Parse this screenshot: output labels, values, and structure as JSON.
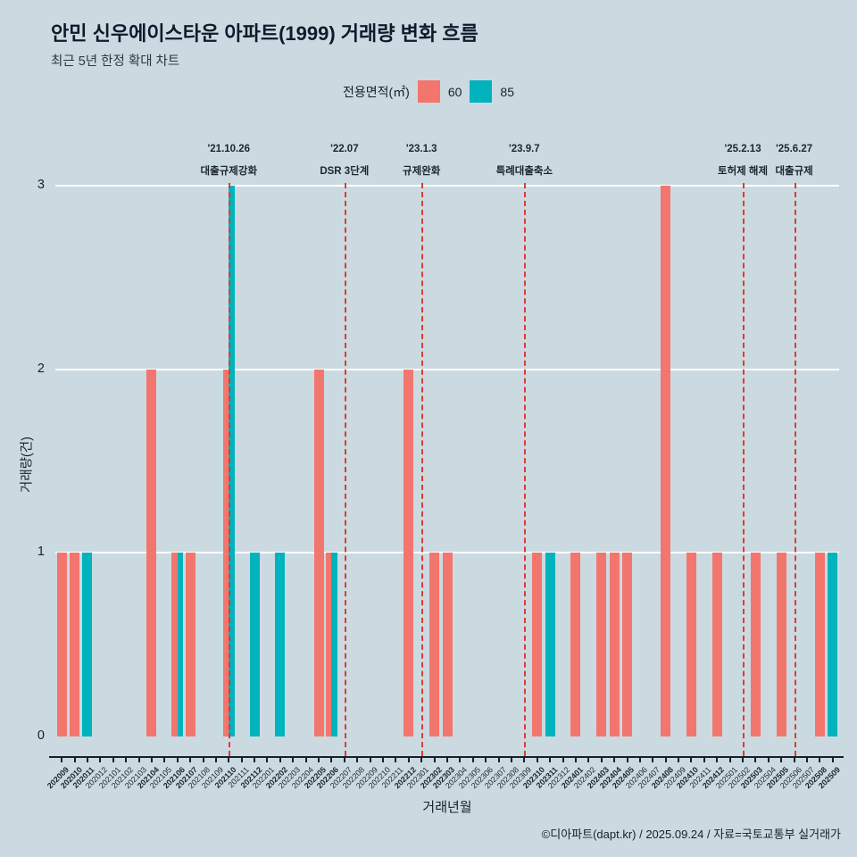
{
  "header": {
    "title": "안민 신우에이스타운 아파트(1999) 거래량 변화 흐름",
    "subtitle": "최근 5년 한정 확대 차트"
  },
  "legend": {
    "label": "전용면적(㎡)",
    "items": [
      {
        "name": "60",
        "color": "#f3766e"
      },
      {
        "name": "85",
        "color": "#00b3bd"
      }
    ]
  },
  "chart_data": {
    "type": "bar",
    "title": "안민 신우에이스타운 아파트(1999) 거래량 변화 흐름",
    "xlabel": "거래년월",
    "ylabel": "거래량(건)",
    "ylim": [
      0,
      3
    ],
    "yticks": [
      0,
      1,
      2,
      3
    ],
    "grid": "horizontal-white",
    "legend_position": "top-center",
    "categories": [
      "202009",
      "202010",
      "202011",
      "202012",
      "202101",
      "202102",
      "202103",
      "202104",
      "202105",
      "202106",
      "202107",
      "202108",
      "202109",
      "202110",
      "202111",
      "202112",
      "202201",
      "202202",
      "202203",
      "202204",
      "202205",
      "202206",
      "202207",
      "202208",
      "202209",
      "202210",
      "202211",
      "202212",
      "202301",
      "202302",
      "202303",
      "202304",
      "202305",
      "202306",
      "202307",
      "202308",
      "202309",
      "202310",
      "202311",
      "202312",
      "202401",
      "202402",
      "202403",
      "202404",
      "202405",
      "202406",
      "202407",
      "202408",
      "202409",
      "202410",
      "202411",
      "202412",
      "202501",
      "202502",
      "202503",
      "202504",
      "202505",
      "202506",
      "202507",
      "202508",
      "202509"
    ],
    "series": [
      {
        "name": "60",
        "color": "#f3766e",
        "values": [
          1,
          1,
          0,
          0,
          0,
          0,
          0,
          2,
          0,
          1,
          1,
          0,
          0,
          2,
          0,
          0,
          0,
          0,
          0,
          0,
          2,
          1,
          0,
          0,
          0,
          0,
          0,
          2,
          0,
          1,
          1,
          0,
          0,
          0,
          0,
          0,
          0,
          1,
          0,
          0,
          1,
          0,
          1,
          1,
          1,
          0,
          0,
          3,
          0,
          1,
          0,
          1,
          0,
          0,
          1,
          0,
          1,
          0,
          0,
          1,
          0
        ]
      },
      {
        "name": "85",
        "color": "#00b3bd",
        "values": [
          0,
          0,
          1,
          0,
          0,
          0,
          0,
          0,
          0,
          1,
          0,
          0,
          0,
          3,
          0,
          1,
          0,
          1,
          0,
          0,
          0,
          1,
          0,
          0,
          0,
          0,
          0,
          0,
          0,
          0,
          0,
          0,
          0,
          0,
          0,
          0,
          0,
          0,
          1,
          0,
          0,
          0,
          0,
          0,
          0,
          0,
          0,
          0,
          0,
          0,
          0,
          0,
          0,
          0,
          0,
          0,
          0,
          0,
          0,
          0,
          1
        ]
      }
    ],
    "events": [
      {
        "date": "'21.10.26",
        "label": "대출규제강화",
        "month": "202110"
      },
      {
        "date": "'22.07",
        "label": "DSR 3단계",
        "month": "202207"
      },
      {
        "date": "'23.1.3",
        "label": "규제완화",
        "month": "202301"
      },
      {
        "date": "'23.9.7",
        "label": "특례대출축소",
        "month": "202309"
      },
      {
        "date": "'25.2.13",
        "label": "토허제 해제",
        "month": "202502"
      },
      {
        "date": "'25.6.27",
        "label": "대출규제",
        "month": "202506"
      }
    ],
    "event_line_color": "#e03a31"
  },
  "footer": {
    "credit": "©디아파트(dapt.kr) / 2025.09.24 / 자료=국토교통부 실거래가"
  }
}
